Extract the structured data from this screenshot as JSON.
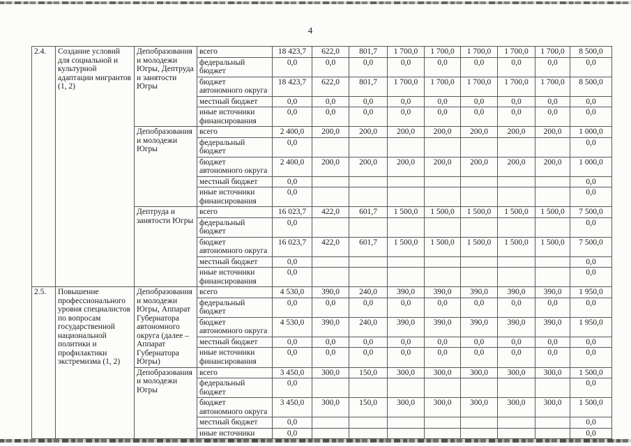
{
  "page": {
    "number": "4"
  },
  "table": {
    "sections": [
      {
        "num": "2.4.",
        "title": "Создание условий для социальной и культурной адаптации мигрантов (1, 2)",
        "blocks": [
          {
            "executor": "Депобразования и молодежи Югры, Дептруда и занятости Югры",
            "rows": [
              {
                "label": "всего",
                "values": [
                  "18 423,7",
                  "622,0",
                  "801,7",
                  "1 700,0",
                  "1 700,0",
                  "1 700,0",
                  "1 700,0",
                  "1 700,0",
                  "8 500,0"
                ]
              },
              {
                "label": "федеральный бюджет",
                "values": [
                  "0,0",
                  "0,0",
                  "0,0",
                  "0,0",
                  "0,0",
                  "0,0",
                  "0,0",
                  "0,0",
                  "0,0"
                ]
              },
              {
                "label": "бюджет автономного округа",
                "values": [
                  "18 423,7",
                  "622,0",
                  "801,7",
                  "1 700,0",
                  "1 700,0",
                  "1 700,0",
                  "1 700,0",
                  "1 700,0",
                  "8 500,0"
                ]
              },
              {
                "label": "местный бюджет",
                "values": [
                  "0,0",
                  "0,0",
                  "0,0",
                  "0,0",
                  "0,0",
                  "0,0",
                  "0,0",
                  "0,0",
                  "0,0"
                ]
              },
              {
                "label": "иные источники финансирования",
                "values": [
                  "0,0",
                  "0,0",
                  "0,0",
                  "0,0",
                  "0,0",
                  "0,0",
                  "0,0",
                  "0,0",
                  "0,0"
                ]
              }
            ]
          },
          {
            "executor": "Депобразования и молодежи Югры",
            "rows": [
              {
                "label": "всего",
                "values": [
                  "2 400,0",
                  "200,0",
                  "200,0",
                  "200,0",
                  "200,0",
                  "200,0",
                  "200,0",
                  "200,0",
                  "1 000,0"
                ]
              },
              {
                "label": "федеральный бюджет",
                "values": [
                  "0,0",
                  "",
                  "",
                  "",
                  "",
                  "",
                  "",
                  "",
                  "0,0"
                ]
              },
              {
                "label": "бюджет автономного округа",
                "values": [
                  "2 400,0",
                  "200,0",
                  "200,0",
                  "200,0",
                  "200,0",
                  "200,0",
                  "200,0",
                  "200,0",
                  "1 000,0"
                ]
              },
              {
                "label": "местный бюджет",
                "values": [
                  "0,0",
                  "",
                  "",
                  "",
                  "",
                  "",
                  "",
                  "",
                  "0,0"
                ]
              },
              {
                "label": "иные источники финансирования",
                "values": [
                  "0,0",
                  "",
                  "",
                  "",
                  "",
                  "",
                  "",
                  "",
                  "0,0"
                ]
              }
            ]
          },
          {
            "executor": "Дептруда и занятости Югры",
            "rows": [
              {
                "label": "всего",
                "values": [
                  "16 023,7",
                  "422,0",
                  "601,7",
                  "1 500,0",
                  "1 500,0",
                  "1 500,0",
                  "1 500,0",
                  "1 500,0",
                  "7 500,0"
                ]
              },
              {
                "label": "федеральный бюджет",
                "values": [
                  "0,0",
                  "",
                  "",
                  "",
                  "",
                  "",
                  "",
                  "",
                  "0,0"
                ]
              },
              {
                "label": "бюджет автономного округа",
                "values": [
                  "16 023,7",
                  "422,0",
                  "601,7",
                  "1 500,0",
                  "1 500,0",
                  "1 500,0",
                  "1 500,0",
                  "1 500,0",
                  "7 500,0"
                ]
              },
              {
                "label": "местный бюджет",
                "values": [
                  "0,0",
                  "",
                  "",
                  "",
                  "",
                  "",
                  "",
                  "",
                  "0,0"
                ]
              },
              {
                "label": "иные источники финансирования",
                "values": [
                  "0,0",
                  "",
                  "",
                  "",
                  "",
                  "",
                  "",
                  "",
                  "0,0"
                ]
              }
            ]
          }
        ]
      },
      {
        "num": "2.5.",
        "title": "Повышение профессионального уровня специалистов по вопросам государственной национальной политики и профилактики экстремизма (1, 2)",
        "blocks": [
          {
            "executor": "Депобразования и молодежи Югры, Аппарат Губернатора автономного округа (далее – Аппарат Губернатора Югры)",
            "rows": [
              {
                "label": "всего",
                "values": [
                  "4 530,0",
                  "390,0",
                  "240,0",
                  "390,0",
                  "390,0",
                  "390,0",
                  "390,0",
                  "390,0",
                  "1 950,0"
                ]
              },
              {
                "label": "федеральный бюджет",
                "values": [
                  "0,0",
                  "0,0",
                  "0,0",
                  "0,0",
                  "0,0",
                  "0,0",
                  "0,0",
                  "0,0",
                  "0,0"
                ]
              },
              {
                "label": "бюджет автономного округа",
                "values": [
                  "4 530,0",
                  "390,0",
                  "240,0",
                  "390,0",
                  "390,0",
                  "390,0",
                  "390,0",
                  "390,0",
                  "1 950,0"
                ]
              },
              {
                "label": "местный бюджет",
                "values": [
                  "0,0",
                  "0,0",
                  "0,0",
                  "0,0",
                  "0,0",
                  "0,0",
                  "0,0",
                  "0,0",
                  "0,0"
                ]
              },
              {
                "label": "иные источники финансирования",
                "values": [
                  "0,0",
                  "0,0",
                  "0,0",
                  "0,0",
                  "0,0",
                  "0,0",
                  "0,0",
                  "0,0",
                  "0,0"
                ]
              }
            ]
          },
          {
            "executor": "Депобразования и молодежи Югры",
            "rows": [
              {
                "label": "всего",
                "values": [
                  "3 450,0",
                  "300,0",
                  "150,0",
                  "300,0",
                  "300,0",
                  "300,0",
                  "300,0",
                  "300,0",
                  "1 500,0"
                ]
              },
              {
                "label": "федеральный бюджет",
                "values": [
                  "0,0",
                  "",
                  "",
                  "",
                  "",
                  "",
                  "",
                  "",
                  "0,0"
                ]
              },
              {
                "label": "бюджет автономного округа",
                "values": [
                  "3 450,0",
                  "300,0",
                  "150,0",
                  "300,0",
                  "300,0",
                  "300,0",
                  "300,0",
                  "300,0",
                  "1 500,0"
                ]
              },
              {
                "label": "местный бюджет",
                "values": [
                  "0,0",
                  "",
                  "",
                  "",
                  "",
                  "",
                  "",
                  "",
                  "0,0"
                ]
              },
              {
                "label": "иные источники",
                "values": [
                  "0,0",
                  "",
                  "",
                  "",
                  "",
                  "",
                  "",
                  "",
                  "0,0"
                ]
              }
            ]
          }
        ]
      }
    ]
  }
}
